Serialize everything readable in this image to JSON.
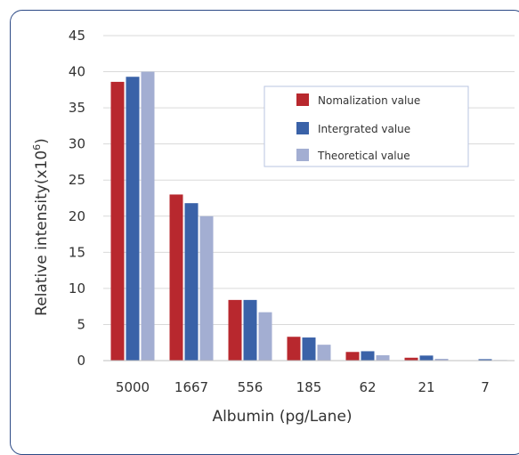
{
  "chart_data": {
    "type": "bar",
    "xlabel": "Albumin (pg/Lane)",
    "ylabel_main": "Relative intensity(x10",
    "ylabel_sup": "6",
    "ylabel_close": ")",
    "categories": [
      "5000",
      "1667",
      "556",
      "185",
      "62",
      "21",
      "7"
    ],
    "ylim": [
      0,
      45
    ],
    "yticks": [
      0,
      5,
      10,
      15,
      20,
      25,
      30,
      35,
      40,
      45
    ],
    "grid": true,
    "legend_position": "upper-right",
    "series": [
      {
        "name": "Nomalization value",
        "color": "#b8282e",
        "values": [
          38.6,
          23.0,
          8.4,
          3.3,
          1.2,
          0.4,
          0.0
        ]
      },
      {
        "name": "Intergrated value",
        "color": "#3a62a8",
        "values": [
          39.3,
          21.8,
          8.4,
          3.2,
          1.3,
          0.7,
          0.2
        ]
      },
      {
        "name": "Theoretical value",
        "color": "#a3aed2",
        "values": [
          40.0,
          20.0,
          6.7,
          2.2,
          0.75,
          0.25,
          0.08
        ]
      }
    ]
  }
}
